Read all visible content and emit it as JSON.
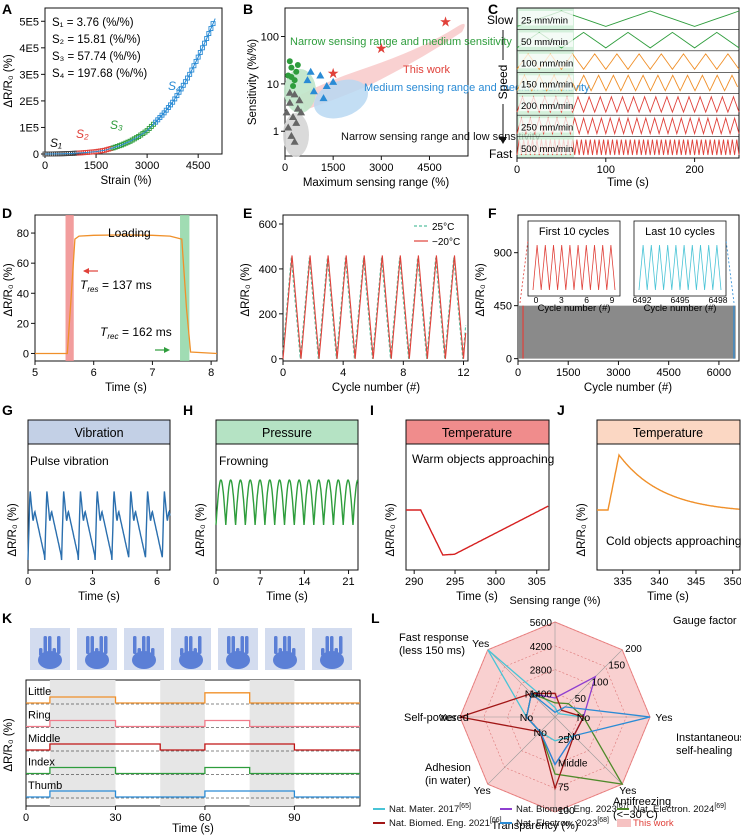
{
  "colors": {
    "axis": "#111111",
    "blue": "#2a8bd5",
    "red": "#e0413a",
    "green": "#2e9d3c",
    "orange": "#f0902a",
    "gray": "#8a8a8a",
    "pinkband": "#f7c6c6",
    "greenband": "#bfe6c9",
    "headerBlue": "#c3d0e6",
    "headerGreen": "#b5e3c4",
    "headerRed": "#f08c8c",
    "headerPeach": "#fbd7c3",
    "navy": "#1f5fa3"
  },
  "panels": [
    {
      "letter": "A"
    },
    {
      "letter": "B"
    },
    {
      "letter": "C"
    },
    {
      "letter": "D"
    },
    {
      "letter": "E"
    },
    {
      "letter": "F"
    },
    {
      "letter": "G"
    },
    {
      "letter": "H"
    },
    {
      "letter": "I"
    },
    {
      "letter": "J"
    },
    {
      "letter": "K"
    },
    {
      "letter": "L"
    }
  ],
  "chart_data": [
    {
      "id": "A",
      "type": "scatter",
      "xlabel": "Strain (%)",
      "ylabel": "ΔR/R₀ (%)",
      "xticks": [
        0,
        1500,
        3000,
        4500
      ],
      "yticks_labels": [
        "0",
        "1E5",
        "2E5",
        "3E5",
        "4E5",
        "5E5"
      ],
      "xlim": [
        0,
        5200
      ],
      "ylim": [
        0,
        550000
      ],
      "x": [
        0,
        250,
        500,
        750,
        1000,
        1250,
        1500,
        1750,
        2000,
        2250,
        2500,
        2750,
        3000,
        3250,
        3500,
        3750,
        4000,
        4250,
        4500,
        4750,
        5000
      ],
      "y": [
        0,
        300,
        900,
        2000,
        3700,
        6000,
        9000,
        14000,
        23000,
        34000,
        48000,
        66000,
        88000,
        120000,
        155000,
        195000,
        245000,
        300000,
        365000,
        435000,
        510000
      ],
      "equations": [
        "S₁ = 3.76 (%/%)",
        "S₂ = 15.81 (%/%)",
        "S₃ = 57.74 (%/%)",
        "S₄ = 197.68 (%/%)"
      ],
      "segment_labels": [
        "S₁",
        "S₂",
        "S₃",
        "S₄"
      ]
    },
    {
      "id": "B",
      "type": "scatter",
      "xlabel": "Maximum sensing range (%)",
      "ylabel": "Sensitivity (%/%)",
      "xticks": [
        0,
        1500,
        3000,
        4500
      ],
      "yticks_labels": [
        "1",
        "10",
        "100"
      ],
      "xlim": [
        0,
        5700
      ],
      "ylim_log": [
        0.3,
        400
      ],
      "groups": [
        {
          "name": "Narrow sensing range and low sensitivity",
          "marker": "gray-triangle",
          "points": [
            [
              50,
              2.5
            ],
            [
              150,
              4
            ],
            [
              250,
              2
            ],
            [
              300,
              6
            ],
            [
              400,
              3
            ],
            [
              100,
              1.2
            ],
            [
              200,
              0.8
            ],
            [
              350,
              1.5
            ],
            [
              450,
              4.5
            ],
            [
              150,
              6.5
            ],
            [
              300,
              0.6
            ],
            [
              500,
              2.5
            ]
          ]
        },
        {
          "name": "Narrow sensing range and medium sensitivity",
          "marker": "green-circle",
          "points": [
            [
              100,
              15
            ],
            [
              200,
              22
            ],
            [
              300,
              12
            ],
            [
              150,
              30
            ],
            [
              250,
              9
            ],
            [
              350,
              18
            ],
            [
              400,
              25
            ],
            [
              200,
              14
            ]
          ]
        },
        {
          "name": "Medium sensing range and medium sensitivity",
          "marker": "blue-triangle",
          "points": [
            [
              700,
              12
            ],
            [
              900,
              7
            ],
            [
              1100,
              15
            ],
            [
              1300,
              9
            ],
            [
              800,
              18
            ],
            [
              1500,
              11
            ],
            [
              1200,
              5
            ]
          ]
        },
        {
          "name": "This work",
          "marker": "red-star",
          "points": [
            [
              1500,
              16
            ],
            [
              3000,
              55
            ],
            [
              5000,
              198
            ]
          ]
        }
      ]
    },
    {
      "id": "C",
      "type": "line",
      "xlabel": "Time (s)",
      "ylabel": "Speed",
      "xticks": [
        0,
        100,
        200
      ],
      "xlim": [
        0,
        250
      ],
      "top_label": "Slow",
      "bottom_label": "Fast",
      "series": [
        {
          "name": "25 mm/min",
          "period": 100
        },
        {
          "name": "50 mm/min",
          "period": 50
        },
        {
          "name": "100 mm/min",
          "period": 25
        },
        {
          "name": "150 mm/min",
          "period": 16.7
        },
        {
          "name": "200 mm/min",
          "period": 12.5
        },
        {
          "name": "250 mm/min",
          "period": 10
        },
        {
          "name": "500 mm/min",
          "period": 5
        }
      ]
    },
    {
      "id": "D",
      "type": "line",
      "xlabel": "Time (s)",
      "ylabel": "ΔR/R₀ (%)",
      "xticks": [
        5,
        6,
        7,
        8
      ],
      "yticks": [
        0,
        20,
        40,
        60,
        80
      ],
      "xlim": [
        5,
        8.1
      ],
      "ylim": [
        -5,
        92
      ],
      "x": [
        5.0,
        5.55,
        5.62,
        5.68,
        5.75,
        6.0,
        6.5,
        7.0,
        7.3,
        7.5,
        7.58,
        7.65,
        8.1
      ],
      "y": [
        0,
        0,
        40,
        76,
        78,
        78.5,
        78.8,
        78.5,
        78,
        76,
        30,
        1,
        0
      ],
      "title": "Loading",
      "t_res": "137 ms",
      "t_rec": "162 ms"
    },
    {
      "id": "E",
      "type": "line",
      "xlabel": "Cycle number (#)",
      "ylabel": "ΔR/R₀ (%)",
      "xticks": [
        0,
        4,
        8,
        12
      ],
      "yticks": [
        0,
        200,
        400,
        600
      ],
      "xlim": [
        0,
        12.3
      ],
      "ylim": [
        -10,
        640
      ],
      "cycles": 10,
      "peak": 460,
      "series": [
        {
          "name": "25°C",
          "style": "dashed-green"
        },
        {
          "name": "−20°C",
          "style": "solid-red"
        }
      ]
    },
    {
      "id": "F",
      "type": "line",
      "xlabel": "Cycle number (#)",
      "ylabel": "ΔR/R₀ (%)",
      "xticks": [
        0,
        1500,
        3000,
        4500,
        6000
      ],
      "yticks": [
        0,
        450,
        900
      ],
      "xlim": [
        0,
        6600
      ],
      "ylim": [
        -20,
        1220
      ],
      "band_top": 450,
      "inset_first": {
        "title": "First 10 cycles",
        "xticks": [
          0,
          3,
          6,
          9
        ],
        "xlabel": "Cycle number (#)"
      },
      "inset_last": {
        "title": "Last 10 cycles",
        "xticks": [
          6492,
          6495,
          6498
        ],
        "xlabel": "Cycle number (#)"
      }
    },
    {
      "id": "G",
      "type": "line",
      "title": "Vibration",
      "annotation": "Pulse vibration",
      "xlabel": "Time (s)",
      "ylabel": "ΔR/R₀ (%)",
      "xticks": [
        0,
        3,
        6
      ],
      "xlim": [
        0,
        6.6
      ]
    },
    {
      "id": "H",
      "type": "line",
      "title": "Pressure",
      "annotation": "Frowning",
      "xlabel": "Time (s)",
      "ylabel": "ΔR/R₀ (%)",
      "xticks": [
        0,
        7,
        14,
        21
      ],
      "xlim": [
        0,
        22.5
      ]
    },
    {
      "id": "I",
      "type": "line",
      "title": "Temperature",
      "annotation": "Warm objects approaching",
      "xlabel": "Time (s)",
      "ylabel": "ΔR/R₀ (%)",
      "xticks": [
        290,
        295,
        300,
        305
      ],
      "xlim": [
        289,
        306.5
      ]
    },
    {
      "id": "J",
      "type": "line",
      "title": "Temperature",
      "annotation": "Cold objects approaching",
      "xlabel": "Time (s)",
      "ylabel": "ΔR/R₀ (%)",
      "xticks": [
        335,
        340,
        345,
        350
      ],
      "xlim": [
        331.5,
        351
      ]
    },
    {
      "id": "K",
      "type": "line",
      "xlabel": "Time (s)",
      "ylabel": "ΔR/R₀ (%)",
      "xticks": [
        0,
        30,
        60,
        90
      ],
      "xlim": [
        0,
        112
      ],
      "fingers": [
        "Little",
        "Ring",
        "Middle",
        "Index",
        "Thumb"
      ],
      "shaded_intervals": [
        [
          8,
          30
        ],
        [
          45,
          60
        ],
        [
          75,
          90
        ]
      ]
    },
    {
      "id": "L",
      "type": "radar",
      "axes": [
        "Sensing range (%)",
        "Gauge factor",
        "Instantaneous self-healing",
        "Antifreezing (<−30°C)",
        "Transparency (%)",
        "Adhesion (in water)",
        "Self-powered",
        "Fast response (less 150 ms)"
      ],
      "range_ticks": [
        "1400",
        "2800",
        "4200",
        "5600"
      ],
      "gf_ticks": [
        "50",
        "100",
        "150",
        "200"
      ],
      "trans_ticks": [
        "25",
        "Middle",
        "75",
        "100"
      ],
      "yes": "Yes",
      "no": "No",
      "legend": [
        {
          "name": "Nat. Mater. 2017",
          "ref": "[65]",
          "color": "#49c4d6"
        },
        {
          "name": "Nat. Biomed. Eng. 2023",
          "ref": "[67]",
          "color": "#8e3fd0"
        },
        {
          "name": "Nat. Electron. 2024",
          "ref": "[69]",
          "color": "#4f8a2a"
        },
        {
          "name": "Nat. Biomed. Eng. 2021",
          "ref": "[66]",
          "color": "#a11616"
        },
        {
          "name": "Nat. Electron. 2023",
          "ref": "[68]",
          "color": "#2a8bd5"
        },
        {
          "name": "This work",
          "ref": "",
          "color": "#f6c2c2"
        }
      ]
    }
  ]
}
